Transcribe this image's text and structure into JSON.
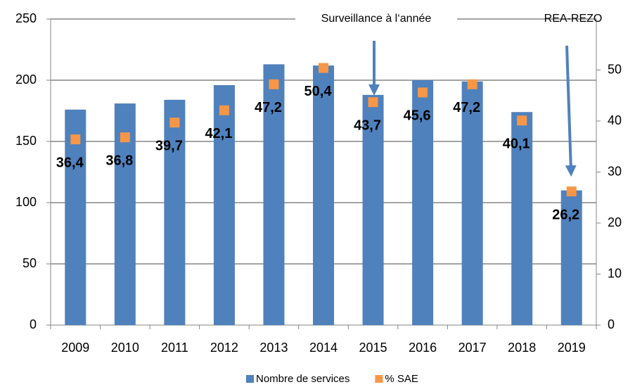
{
  "chart_data": {
    "type": "bar",
    "categories": [
      "2009",
      "2010",
      "2011",
      "2012",
      "2013",
      "2014",
      "2015",
      "2016",
      "2017",
      "2018",
      "2019"
    ],
    "series": [
      {
        "name": "Nombre de services",
        "color": "#4f81bd",
        "values": [
          176,
          181,
          184,
          196,
          213,
          212,
          188,
          200,
          199,
          174,
          110
        ]
      },
      {
        "name": "% SAE",
        "color": "#f79646",
        "axis": "y2",
        "values": [
          36.4,
          36.8,
          39.7,
          42.1,
          47.2,
          50.4,
          43.7,
          45.6,
          47.2,
          40.1,
          26.2
        ],
        "value_labels": [
          "36,4",
          "36,8",
          "39,7",
          "42,1",
          "47,2",
          "50,4",
          "43,7",
          "45,6",
          "47,2",
          "40,1",
          "26,2"
        ]
      }
    ],
    "ylim": [
      0,
      250
    ],
    "yticks": [
      0,
      50,
      100,
      150,
      200,
      250
    ],
    "y2lim": [
      0,
      60
    ],
    "y2ticks": [
      0,
      10,
      20,
      30,
      40,
      50
    ],
    "grid": true,
    "legend": "bottom",
    "annotations": [
      "Surveillance à l‘année",
      "REA-REZO"
    ]
  }
}
